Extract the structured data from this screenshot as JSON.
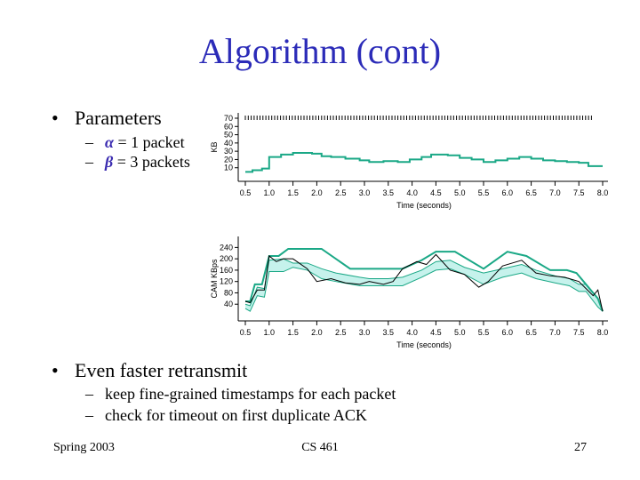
{
  "slide": {
    "title": "Algorithm (cont)",
    "bullet1": "Parameters",
    "alpha_symbol": "α",
    "alpha_text": " = 1 packet",
    "beta_symbol": "β",
    "beta_text": " = 3 packets",
    "bullet2": "Even faster retransmit",
    "sub2a": "keep fine-grained timestamps for each packet",
    "sub2b": "check for timeout on first duplicate ACK",
    "bullet_glyph": "•",
    "dash_glyph": "–"
  },
  "footer": {
    "left": "Spring 2003",
    "center": "CS 461",
    "right": "27"
  },
  "chart_data": [
    {
      "type": "line",
      "xlabel": "Time (seconds)",
      "ylabel": "KB",
      "x_ticks": [
        "0.5",
        "1.0",
        "1.5",
        "2.0",
        "2.5",
        "3.0",
        "3.5",
        "4.0",
        "4.5",
        "5.0",
        "5.5",
        "6.0",
        "6.5",
        "7.0",
        "7.5",
        "8.0"
      ],
      "y_ticks": [
        "10",
        "20",
        "30",
        "40",
        "50",
        "60",
        "70"
      ],
      "xlim": [
        0.5,
        8.0
      ],
      "ylim": [
        0,
        70
      ],
      "color": "#1aa886",
      "series": [
        {
          "step": true,
          "x": [
            0.5,
            0.65,
            0.85,
            1.0,
            1.25,
            1.5,
            1.9,
            2.1,
            2.3,
            2.6,
            2.9,
            3.1,
            3.4,
            3.7,
            3.95,
            4.2,
            4.4,
            4.75,
            5.0,
            5.25,
            5.5,
            5.75,
            6.0,
            6.25,
            6.5,
            6.75,
            7.0,
            7.25,
            7.5,
            7.7,
            8.0
          ],
          "y": [
            5,
            7,
            9,
            23,
            26,
            28,
            27,
            24,
            23,
            21,
            19,
            17,
            18,
            17,
            20,
            23,
            26,
            25,
            22,
            20,
            17,
            19,
            21,
            23,
            21,
            19,
            18,
            17,
            16,
            12,
            12
          ]
        }
      ]
    },
    {
      "type": "line",
      "xlabel": "Time (seconds)",
      "ylabel": "CAM KBps",
      "x_ticks": [
        "0.5",
        "1.0",
        "1.5",
        "2.0",
        "2.5",
        "3.0",
        "3.5",
        "4.0",
        "4.5",
        "5.0",
        "5.5",
        "6.0",
        "6.5",
        "7.0",
        "7.5",
        "8.0"
      ],
      "y_ticks": [
        "40",
        "80",
        "120",
        "160",
        "200",
        "240"
      ],
      "xlim": [
        0.5,
        8.0
      ],
      "ylim": [
        0,
        260
      ],
      "colors": {
        "max": "#1aa886",
        "band": "#1aa886",
        "band_fill": "#c6f2ec",
        "actual": "#000000"
      },
      "series": [
        {
          "role": "max",
          "x": [
            0.5,
            0.6,
            0.7,
            0.85,
            1.0,
            1.2,
            1.4,
            1.6,
            2.1,
            2.7,
            3.2,
            3.8,
            4.2,
            4.5,
            4.9,
            5.5,
            6.0,
            6.4,
            6.9,
            7.25,
            7.45,
            7.6,
            7.9,
            8.0
          ],
          "y": [
            50,
            50,
            110,
            110,
            210,
            210,
            235,
            235,
            235,
            165,
            165,
            165,
            195,
            225,
            225,
            165,
            225,
            210,
            160,
            160,
            150,
            120,
            60,
            15
          ]
        },
        {
          "role": "band_upper",
          "x": [
            0.5,
            0.6,
            0.75,
            0.9,
            1.0,
            1.3,
            1.5,
            1.8,
            2.1,
            2.4,
            2.9,
            3.1,
            3.5,
            3.8,
            4.2,
            4.5,
            4.8,
            5.1,
            5.5,
            5.9,
            6.3,
            6.6,
            7.0,
            7.3,
            7.5,
            7.65,
            7.9,
            8.0
          ],
          "y": [
            40,
            35,
            100,
            95,
            195,
            200,
            185,
            185,
            165,
            150,
            135,
            130,
            130,
            135,
            160,
            190,
            195,
            170,
            150,
            165,
            180,
            160,
            140,
            130,
            110,
            110,
            60,
            15
          ]
        },
        {
          "role": "band_lower",
          "x": [
            0.5,
            0.6,
            0.75,
            0.9,
            1.0,
            1.3,
            1.5,
            1.8,
            2.1,
            2.4,
            2.9,
            3.1,
            3.5,
            3.8,
            4.2,
            4.5,
            4.8,
            5.1,
            5.5,
            5.9,
            6.3,
            6.6,
            7.0,
            7.3,
            7.5,
            7.65,
            7.9,
            8.0
          ],
          "y": [
            25,
            15,
            70,
            65,
            155,
            155,
            170,
            160,
            130,
            120,
            105,
            105,
            105,
            105,
            135,
            160,
            165,
            145,
            110,
            135,
            150,
            130,
            115,
            105,
            85,
            85,
            30,
            15
          ]
        },
        {
          "role": "actual",
          "x": [
            0.5,
            0.6,
            0.75,
            0.9,
            1.0,
            1.15,
            1.3,
            1.5,
            1.8,
            2.0,
            2.3,
            2.6,
            2.9,
            3.1,
            3.4,
            3.6,
            3.8,
            4.1,
            4.3,
            4.5,
            4.8,
            5.1,
            5.4,
            5.6,
            5.9,
            6.3,
            6.6,
            6.9,
            7.2,
            7.5,
            7.8,
            7.9,
            8.0
          ],
          "y": [
            50,
            45,
            90,
            90,
            210,
            190,
            200,
            200,
            165,
            120,
            130,
            115,
            110,
            120,
            110,
            120,
            165,
            190,
            180,
            215,
            160,
            145,
            100,
            120,
            175,
            195,
            150,
            140,
            135,
            120,
            70,
            90,
            15
          ]
        }
      ]
    }
  ]
}
